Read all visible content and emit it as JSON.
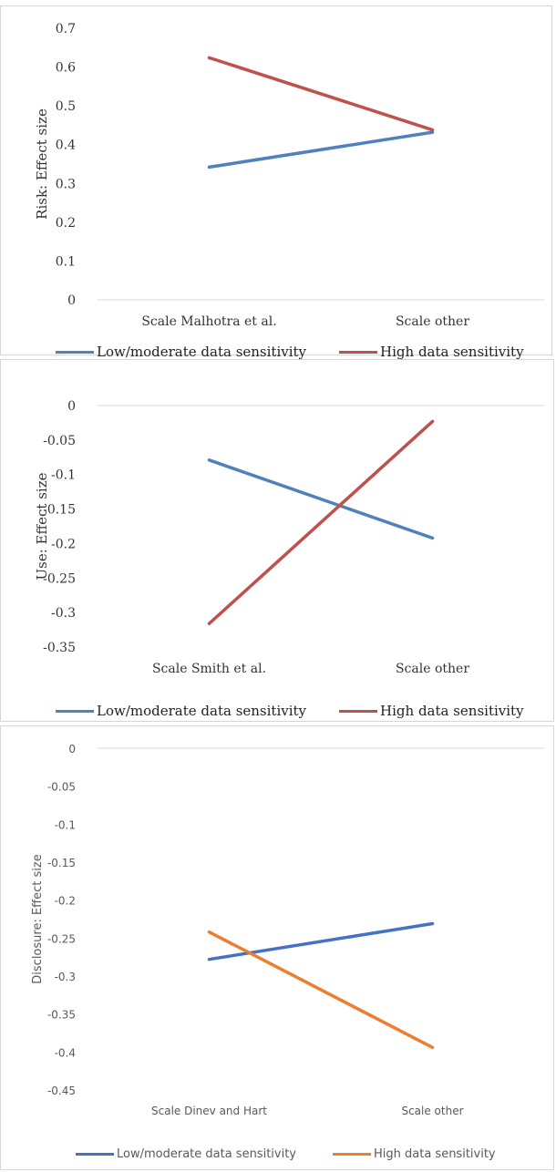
{
  "chart_data": [
    {
      "type": "line",
      "ylabel": "Risk: Effect size",
      "categories": [
        "Scale Malhotra et al.",
        "Scale other"
      ],
      "yticks": [
        "0.7",
        "0.6",
        "0.5",
        "0.4",
        "0.3",
        "0.2",
        "0.1",
        "0"
      ],
      "ylim": [
        0,
        0.7
      ],
      "grid": false,
      "legend_position": "bottom",
      "series": [
        {
          "name": "Low/moderate data sensitivity",
          "color": "#4f81bd",
          "values": [
            0.342,
            0.432
          ]
        },
        {
          "name": "High data sensitivity",
          "color": "#c0504d",
          "values": [
            0.624,
            0.438
          ]
        }
      ]
    },
    {
      "type": "line",
      "ylabel": "Use: Effect size",
      "categories": [
        "Scale Smith et al.",
        "Scale other"
      ],
      "yticks": [
        "0",
        "-0.05",
        "-0.1",
        "-0.15",
        "-0.2",
        "-0.25",
        "-0.3",
        "-0.35"
      ],
      "ylim": [
        -0.35,
        0
      ],
      "grid": false,
      "legend_position": "bottom",
      "series": [
        {
          "name": "Low/moderate data sensitivity",
          "color": "#4f81bd",
          "values": [
            -0.079,
            -0.192
          ]
        },
        {
          "name": "High data sensitivity",
          "color": "#c0504d",
          "values": [
            -0.316,
            -0.023
          ]
        }
      ]
    },
    {
      "type": "line",
      "ylabel": "Disclosure: Effect size",
      "categories": [
        "Scale Dinev and Hart",
        "Scale other"
      ],
      "yticks": [
        "0",
        "-0.05",
        "-0.1",
        "-0.15",
        "-0.2",
        "-0.25",
        "-0.3",
        "-0.35",
        "-0.4",
        "-0.45"
      ],
      "ylim": [
        -0.45,
        0
      ],
      "grid": false,
      "legend_position": "bottom",
      "series": [
        {
          "name": "Low/moderate data sensitivity",
          "color": "#4472c4",
          "values": [
            -0.278,
            -0.231
          ]
        },
        {
          "name": "High data sensitivity",
          "color": "#ed7d31",
          "values": [
            -0.242,
            -0.394
          ]
        }
      ]
    }
  ]
}
